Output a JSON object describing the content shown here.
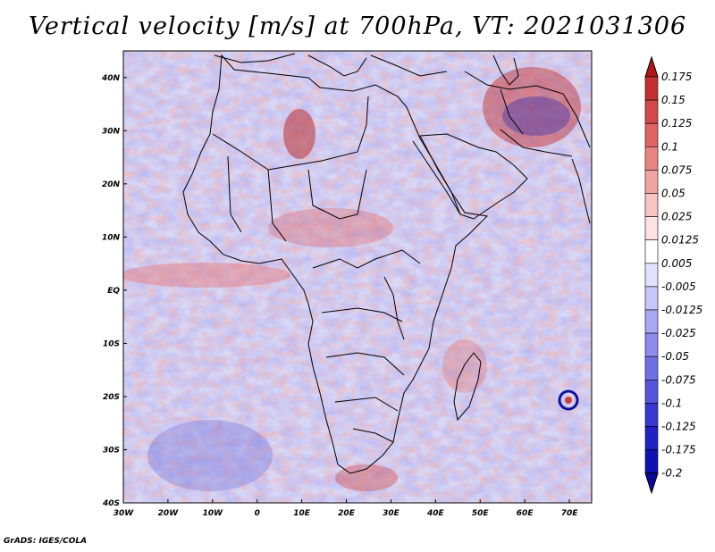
{
  "title": "Vertical velocity [m/s] at 700hPa, VT: 2021031306",
  "credit": "GrADS: IGES/COLA",
  "map": {
    "lon_range": [
      -30,
      75
    ],
    "lat_range": [
      -40,
      45
    ],
    "lon_ticks": [
      {
        "value": -30,
        "label": "30W"
      },
      {
        "value": -20,
        "label": "20W"
      },
      {
        "value": -10,
        "label": "10W"
      },
      {
        "value": 0,
        "label": "0"
      },
      {
        "value": 10,
        "label": "10E"
      },
      {
        "value": 20,
        "label": "20E"
      },
      {
        "value": 30,
        "label": "30E"
      },
      {
        "value": 40,
        "label": "40E"
      },
      {
        "value": 50,
        "label": "50E"
      },
      {
        "value": 60,
        "label": "60E"
      },
      {
        "value": 70,
        "label": "70E"
      }
    ],
    "lat_ticks": [
      {
        "value": 40,
        "label": "40N"
      },
      {
        "value": 30,
        "label": "30N"
      },
      {
        "value": 20,
        "label": "20N"
      },
      {
        "value": 10,
        "label": "10N"
      },
      {
        "value": 0,
        "label": "EQ"
      },
      {
        "value": -10,
        "label": "10S"
      },
      {
        "value": -20,
        "label": "20S"
      },
      {
        "value": -30,
        "label": "30S"
      },
      {
        "value": -40,
        "label": "40S"
      }
    ]
  },
  "colorbar": {
    "levels": [
      "0.175",
      "0.15",
      "0.125",
      "0.1",
      "0.075",
      "0.05",
      "0.025",
      "0.0125",
      "0.005",
      "-0.005",
      "-0.0125",
      "-0.025",
      "-0.05",
      "-0.075",
      "-0.1",
      "-0.125",
      "-0.175",
      "-0.2"
    ],
    "colors": [
      "#b01818",
      "#c43030",
      "#d44848",
      "#e06464",
      "#ea8484",
      "#f2a4a4",
      "#f8c4c4",
      "#fce2e2",
      "#ffffff",
      "#e2e2fc",
      "#c6c6f8",
      "#a8a8f2",
      "#8c8cec",
      "#7070e4",
      "#5454dc",
      "#3838d0",
      "#2020c4",
      "#1010b4",
      "#0a0a9c"
    ],
    "top_color": "#b01818",
    "bottom_color": "#0a0a9c"
  }
}
